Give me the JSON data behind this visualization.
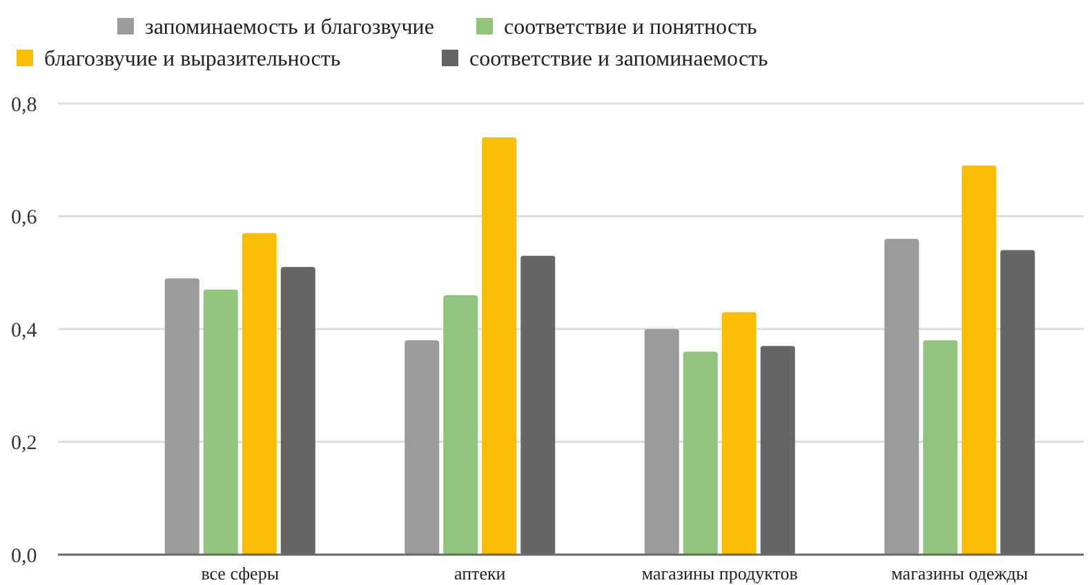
{
  "chart_data": {
    "type": "bar",
    "categories": [
      "все сферы",
      "аптеки",
      "магазины продуктов",
      "магазины одежды"
    ],
    "series": [
      {
        "name": "запоминаемость и благозвучие",
        "color": "#9b9b9b",
        "values": [
          0.49,
          0.38,
          0.4,
          0.56
        ]
      },
      {
        "name": "соответствие и понятность",
        "color": "#93c47d",
        "values": [
          0.47,
          0.46,
          0.36,
          0.38
        ]
      },
      {
        "name": "благозвучие и выразительность",
        "color": "#f9bd03",
        "values": [
          0.57,
          0.74,
          0.43,
          0.69
        ]
      },
      {
        "name": "соответствие и запоминаемость",
        "color": "#666666",
        "values": [
          0.51,
          0.53,
          0.37,
          0.54
        ]
      }
    ],
    "ylim": [
      0,
      0.8
    ],
    "yticks": [
      {
        "value": 0,
        "label": "0,0"
      },
      {
        "value": 0.2,
        "label": "0,2"
      },
      {
        "value": 0.4,
        "label": "0,4"
      },
      {
        "value": 0.6,
        "label": "0,6"
      },
      {
        "value": 0.8,
        "label": "0,8"
      }
    ],
    "grid": "y",
    "legend": "top"
  }
}
